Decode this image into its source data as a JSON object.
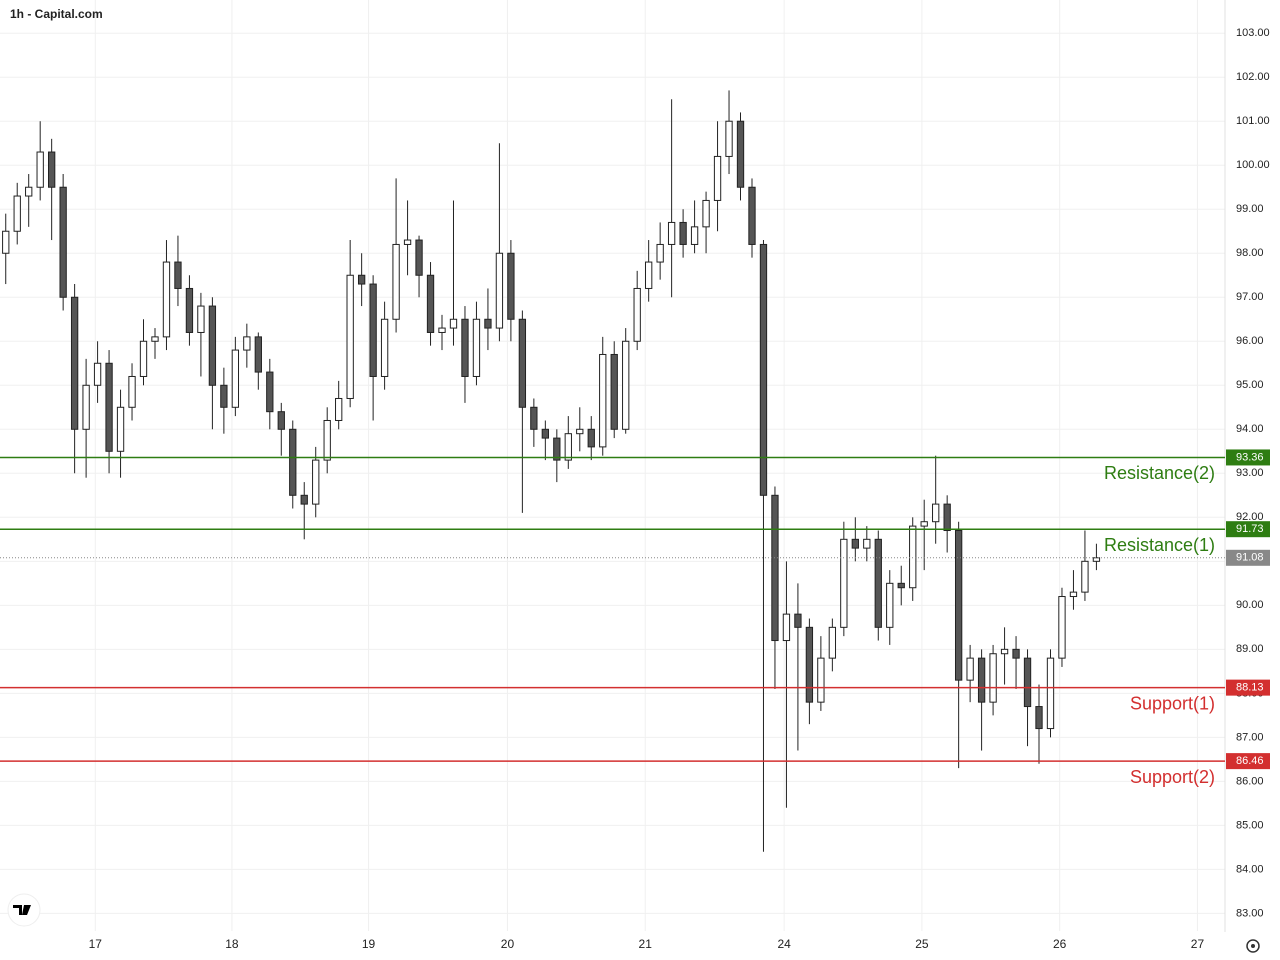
{
  "chart_data": {
    "type": "candlestick",
    "title": "1h - Capital.com",
    "up_color": "#ffffff",
    "down_color": "#555555",
    "wick_color": "#222222",
    "ylim": [
      82.6,
      103.3
    ],
    "yticks": [
      {
        "value": 83,
        "label": "83.00"
      },
      {
        "value": 84,
        "label": "84.00"
      },
      {
        "value": 85,
        "label": "85.00"
      },
      {
        "value": 86,
        "label": "86.00"
      },
      {
        "value": 87,
        "label": "87.00"
      },
      {
        "value": 88,
        "label": "88.00"
      },
      {
        "value": 89,
        "label": "89.00"
      },
      {
        "value": 90,
        "label": "90.00"
      },
      {
        "value": 91,
        "label": "91.00"
      },
      {
        "value": 92,
        "label": "92.00"
      },
      {
        "value": 93,
        "label": "93.00"
      },
      {
        "value": 94,
        "label": "94.00"
      },
      {
        "value": 95,
        "label": "95.00"
      },
      {
        "value": 96,
        "label": "96.00"
      },
      {
        "value": 97,
        "label": "97.00"
      },
      {
        "value": 98,
        "label": "98.00"
      },
      {
        "value": 99,
        "label": "99.00"
      },
      {
        "value": 100,
        "label": "100.00"
      },
      {
        "value": 101,
        "label": "101.00"
      },
      {
        "value": 102,
        "label": "102.00"
      },
      {
        "value": 103,
        "label": "103.00"
      }
    ],
    "xlim": [
      0,
      106.7
    ],
    "xticks": [
      {
        "value": 8.3,
        "label": "17"
      },
      {
        "value": 20.2,
        "label": "18"
      },
      {
        "value": 32.1,
        "label": "19"
      },
      {
        "value": 44.2,
        "label": "20"
      },
      {
        "value": 56.2,
        "label": "21"
      },
      {
        "value": 68.3,
        "label": "24"
      },
      {
        "value": 80.3,
        "label": "25"
      },
      {
        "value": 92.3,
        "label": "26"
      },
      {
        "value": 104.3,
        "label": "27"
      }
    ],
    "grid": true,
    "levels": [
      {
        "name": "Resistance(2)",
        "value": 93.36,
        "color": "#2e7d12"
      },
      {
        "name": "Resistance(1)",
        "value": 91.73,
        "color": "#2e7d12"
      },
      {
        "name": "Support(1)",
        "value": 88.13,
        "color": "#d32f2f"
      },
      {
        "name": "Support(2)",
        "value": 86.46,
        "color": "#d32f2f"
      }
    ],
    "last_price": 91.08,
    "last_price_color": "#888888",
    "ohlc": [
      [
        98.0,
        98.9,
        97.3,
        98.5
      ],
      [
        98.5,
        99.6,
        98.2,
        99.3
      ],
      [
        99.3,
        99.8,
        98.6,
        99.5
      ],
      [
        99.5,
        101.0,
        99.2,
        100.3
      ],
      [
        100.3,
        100.6,
        98.3,
        99.5
      ],
      [
        99.5,
        99.8,
        96.7,
        97.0
      ],
      [
        97.0,
        97.3,
        93.0,
        94.0
      ],
      [
        94.0,
        95.6,
        92.9,
        95.0
      ],
      [
        95.0,
        96.0,
        94.6,
        95.5
      ],
      [
        95.5,
        95.8,
        93.0,
        93.5
      ],
      [
        93.5,
        94.9,
        92.9,
        94.5
      ],
      [
        94.5,
        95.5,
        94.2,
        95.2
      ],
      [
        95.2,
        96.5,
        95.0,
        96.0
      ],
      [
        96.0,
        96.3,
        95.6,
        96.1
      ],
      [
        96.1,
        98.3,
        95.8,
        97.8
      ],
      [
        97.8,
        98.4,
        96.8,
        97.2
      ],
      [
        97.2,
        97.5,
        95.9,
        96.2
      ],
      [
        96.2,
        97.1,
        95.2,
        96.8
      ],
      [
        96.8,
        97.0,
        94.0,
        95.0
      ],
      [
        95.0,
        95.4,
        93.9,
        94.5
      ],
      [
        94.5,
        96.1,
        94.3,
        95.8
      ],
      [
        95.8,
        96.4,
        95.4,
        96.1
      ],
      [
        96.1,
        96.2,
        94.9,
        95.3
      ],
      [
        95.3,
        95.6,
        94.0,
        94.4
      ],
      [
        94.4,
        94.6,
        93.4,
        94.0
      ],
      [
        94.0,
        94.2,
        92.2,
        92.5
      ],
      [
        92.5,
        92.8,
        91.5,
        92.3
      ],
      [
        92.3,
        93.6,
        92.0,
        93.3
      ],
      [
        93.3,
        94.5,
        93.0,
        94.2
      ],
      [
        94.2,
        95.1,
        94.0,
        94.7
      ],
      [
        94.7,
        98.3,
        94.5,
        97.5
      ],
      [
        97.5,
        98.0,
        96.8,
        97.3
      ],
      [
        97.3,
        97.5,
        94.2,
        95.2
      ],
      [
        95.2,
        96.9,
        94.9,
        96.5
      ],
      [
        96.5,
        99.7,
        96.2,
        98.2
      ],
      [
        98.2,
        99.2,
        97.5,
        98.3
      ],
      [
        98.3,
        98.4,
        97.0,
        97.5
      ],
      [
        97.5,
        97.8,
        95.9,
        96.2
      ],
      [
        96.2,
        96.6,
        95.8,
        96.3
      ],
      [
        96.3,
        99.2,
        95.9,
        96.5
      ],
      [
        96.5,
        96.8,
        94.6,
        95.2
      ],
      [
        95.2,
        96.9,
        95.0,
        96.5
      ],
      [
        96.5,
        97.2,
        95.8,
        96.3
      ],
      [
        96.3,
        100.5,
        96.0,
        98.0
      ],
      [
        98.0,
        98.3,
        96.0,
        96.5
      ],
      [
        96.5,
        96.7,
        92.1,
        94.5
      ],
      [
        94.5,
        94.7,
        93.6,
        94.0
      ],
      [
        94.0,
        94.2,
        93.3,
        93.8
      ],
      [
        93.8,
        94.0,
        92.8,
        93.3
      ],
      [
        93.3,
        94.3,
        93.1,
        93.9
      ],
      [
        93.9,
        94.5,
        93.5,
        94.0
      ],
      [
        94.0,
        94.3,
        93.3,
        93.6
      ],
      [
        93.6,
        96.1,
        93.4,
        95.7
      ],
      [
        95.7,
        96.0,
        93.8,
        94.0
      ],
      [
        94.0,
        96.3,
        93.9,
        96.0
      ],
      [
        96.0,
        97.6,
        95.8,
        97.2
      ],
      [
        97.2,
        98.3,
        96.9,
        97.8
      ],
      [
        97.8,
        98.7,
        97.4,
        98.2
      ],
      [
        98.2,
        101.5,
        97.0,
        98.7
      ],
      [
        98.7,
        99.0,
        97.9,
        98.2
      ],
      [
        98.2,
        99.2,
        98.0,
        98.6
      ],
      [
        98.6,
        99.4,
        98.0,
        99.2
      ],
      [
        99.2,
        101.0,
        98.5,
        100.2
      ],
      [
        100.2,
        101.7,
        99.8,
        101.0
      ],
      [
        101.0,
        101.2,
        99.2,
        99.5
      ],
      [
        99.5,
        99.7,
        97.9,
        98.2
      ],
      [
        98.2,
        98.3,
        84.4,
        92.5
      ],
      [
        92.5,
        92.7,
        88.1,
        89.2
      ],
      [
        89.2,
        91.0,
        85.4,
        89.8
      ],
      [
        89.8,
        90.5,
        86.7,
        89.5
      ],
      [
        89.5,
        89.7,
        87.3,
        87.8
      ],
      [
        87.8,
        89.3,
        87.6,
        88.8
      ],
      [
        88.8,
        89.7,
        88.5,
        89.5
      ],
      [
        89.5,
        91.9,
        89.3,
        91.5
      ],
      [
        91.5,
        92.0,
        91.0,
        91.3
      ],
      [
        91.3,
        91.8,
        91.0,
        91.5
      ],
      [
        91.5,
        91.7,
        89.2,
        89.5
      ],
      [
        89.5,
        90.8,
        89.1,
        90.5
      ],
      [
        90.5,
        90.9,
        90.0,
        90.4
      ],
      [
        90.4,
        92.0,
        90.1,
        91.8
      ],
      [
        91.8,
        92.4,
        90.8,
        91.9
      ],
      [
        91.9,
        93.4,
        91.4,
        92.3
      ],
      [
        92.3,
        92.5,
        91.2,
        91.7
      ],
      [
        91.7,
        91.9,
        86.3,
        88.3
      ],
      [
        88.3,
        89.1,
        87.8,
        88.8
      ],
      [
        88.8,
        89.0,
        86.7,
        87.8
      ],
      [
        87.8,
        89.1,
        87.5,
        88.9
      ],
      [
        88.9,
        89.5,
        88.2,
        89.0
      ],
      [
        89.0,
        89.3,
        88.1,
        88.8
      ],
      [
        88.8,
        89.0,
        86.8,
        87.7
      ],
      [
        87.7,
        88.2,
        86.4,
        87.2
      ],
      [
        87.2,
        89.0,
        87.0,
        88.8
      ],
      [
        88.8,
        90.4,
        88.6,
        90.2
      ],
      [
        90.2,
        90.8,
        89.9,
        90.3
      ],
      [
        90.3,
        91.7,
        90.1,
        91.0
      ],
      [
        91.0,
        91.4,
        90.8,
        91.08
      ]
    ]
  }
}
